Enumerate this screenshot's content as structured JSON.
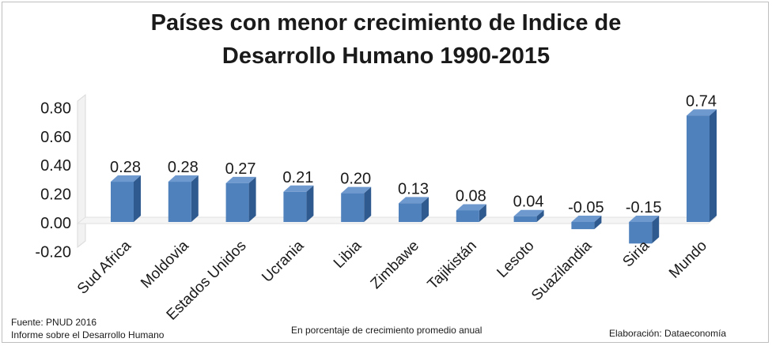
{
  "chart_data": {
    "type": "bar",
    "title": [
      "Países con menor crecimiento de Indice de",
      "Desarrollo Humano 1990-2015"
    ],
    "categories": [
      "Sud Africa",
      "Moldovia",
      "Estados Unidos",
      "Ucrania",
      "Libia",
      "Zimbawe",
      "Tajikistán",
      "Lesoto",
      "Suazilandia",
      "Siria",
      "Mundo"
    ],
    "values": [
      0.28,
      0.28,
      0.27,
      0.21,
      0.2,
      0.13,
      0.08,
      0.04,
      -0.05,
      -0.15,
      0.74
    ],
    "data_labels": [
      "0.28",
      "0.28",
      "0.27",
      "0.21",
      "0.20",
      "0.13",
      "0.08",
      "0.04",
      "-0.05",
      "-0.15",
      "0.74"
    ],
    "yticks": [
      "0.80",
      "0.60",
      "0.40",
      "0.20",
      "0.00",
      "-0.20"
    ],
    "ytick_values": [
      0.8,
      0.6,
      0.4,
      0.2,
      0.0,
      -0.2
    ],
    "ylim": [
      -0.2,
      0.8
    ],
    "bar_color": "#4f81bd",
    "grid": false,
    "legend": false
  },
  "footer": {
    "source_line1": "Fuente: PNUD 2016",
    "source_line2": "Informe sobre el Desarrollo Humano",
    "center_note": "En porcentaje de crecimiento promedio anual",
    "credit": "Elaboración: Dataeconomía"
  }
}
